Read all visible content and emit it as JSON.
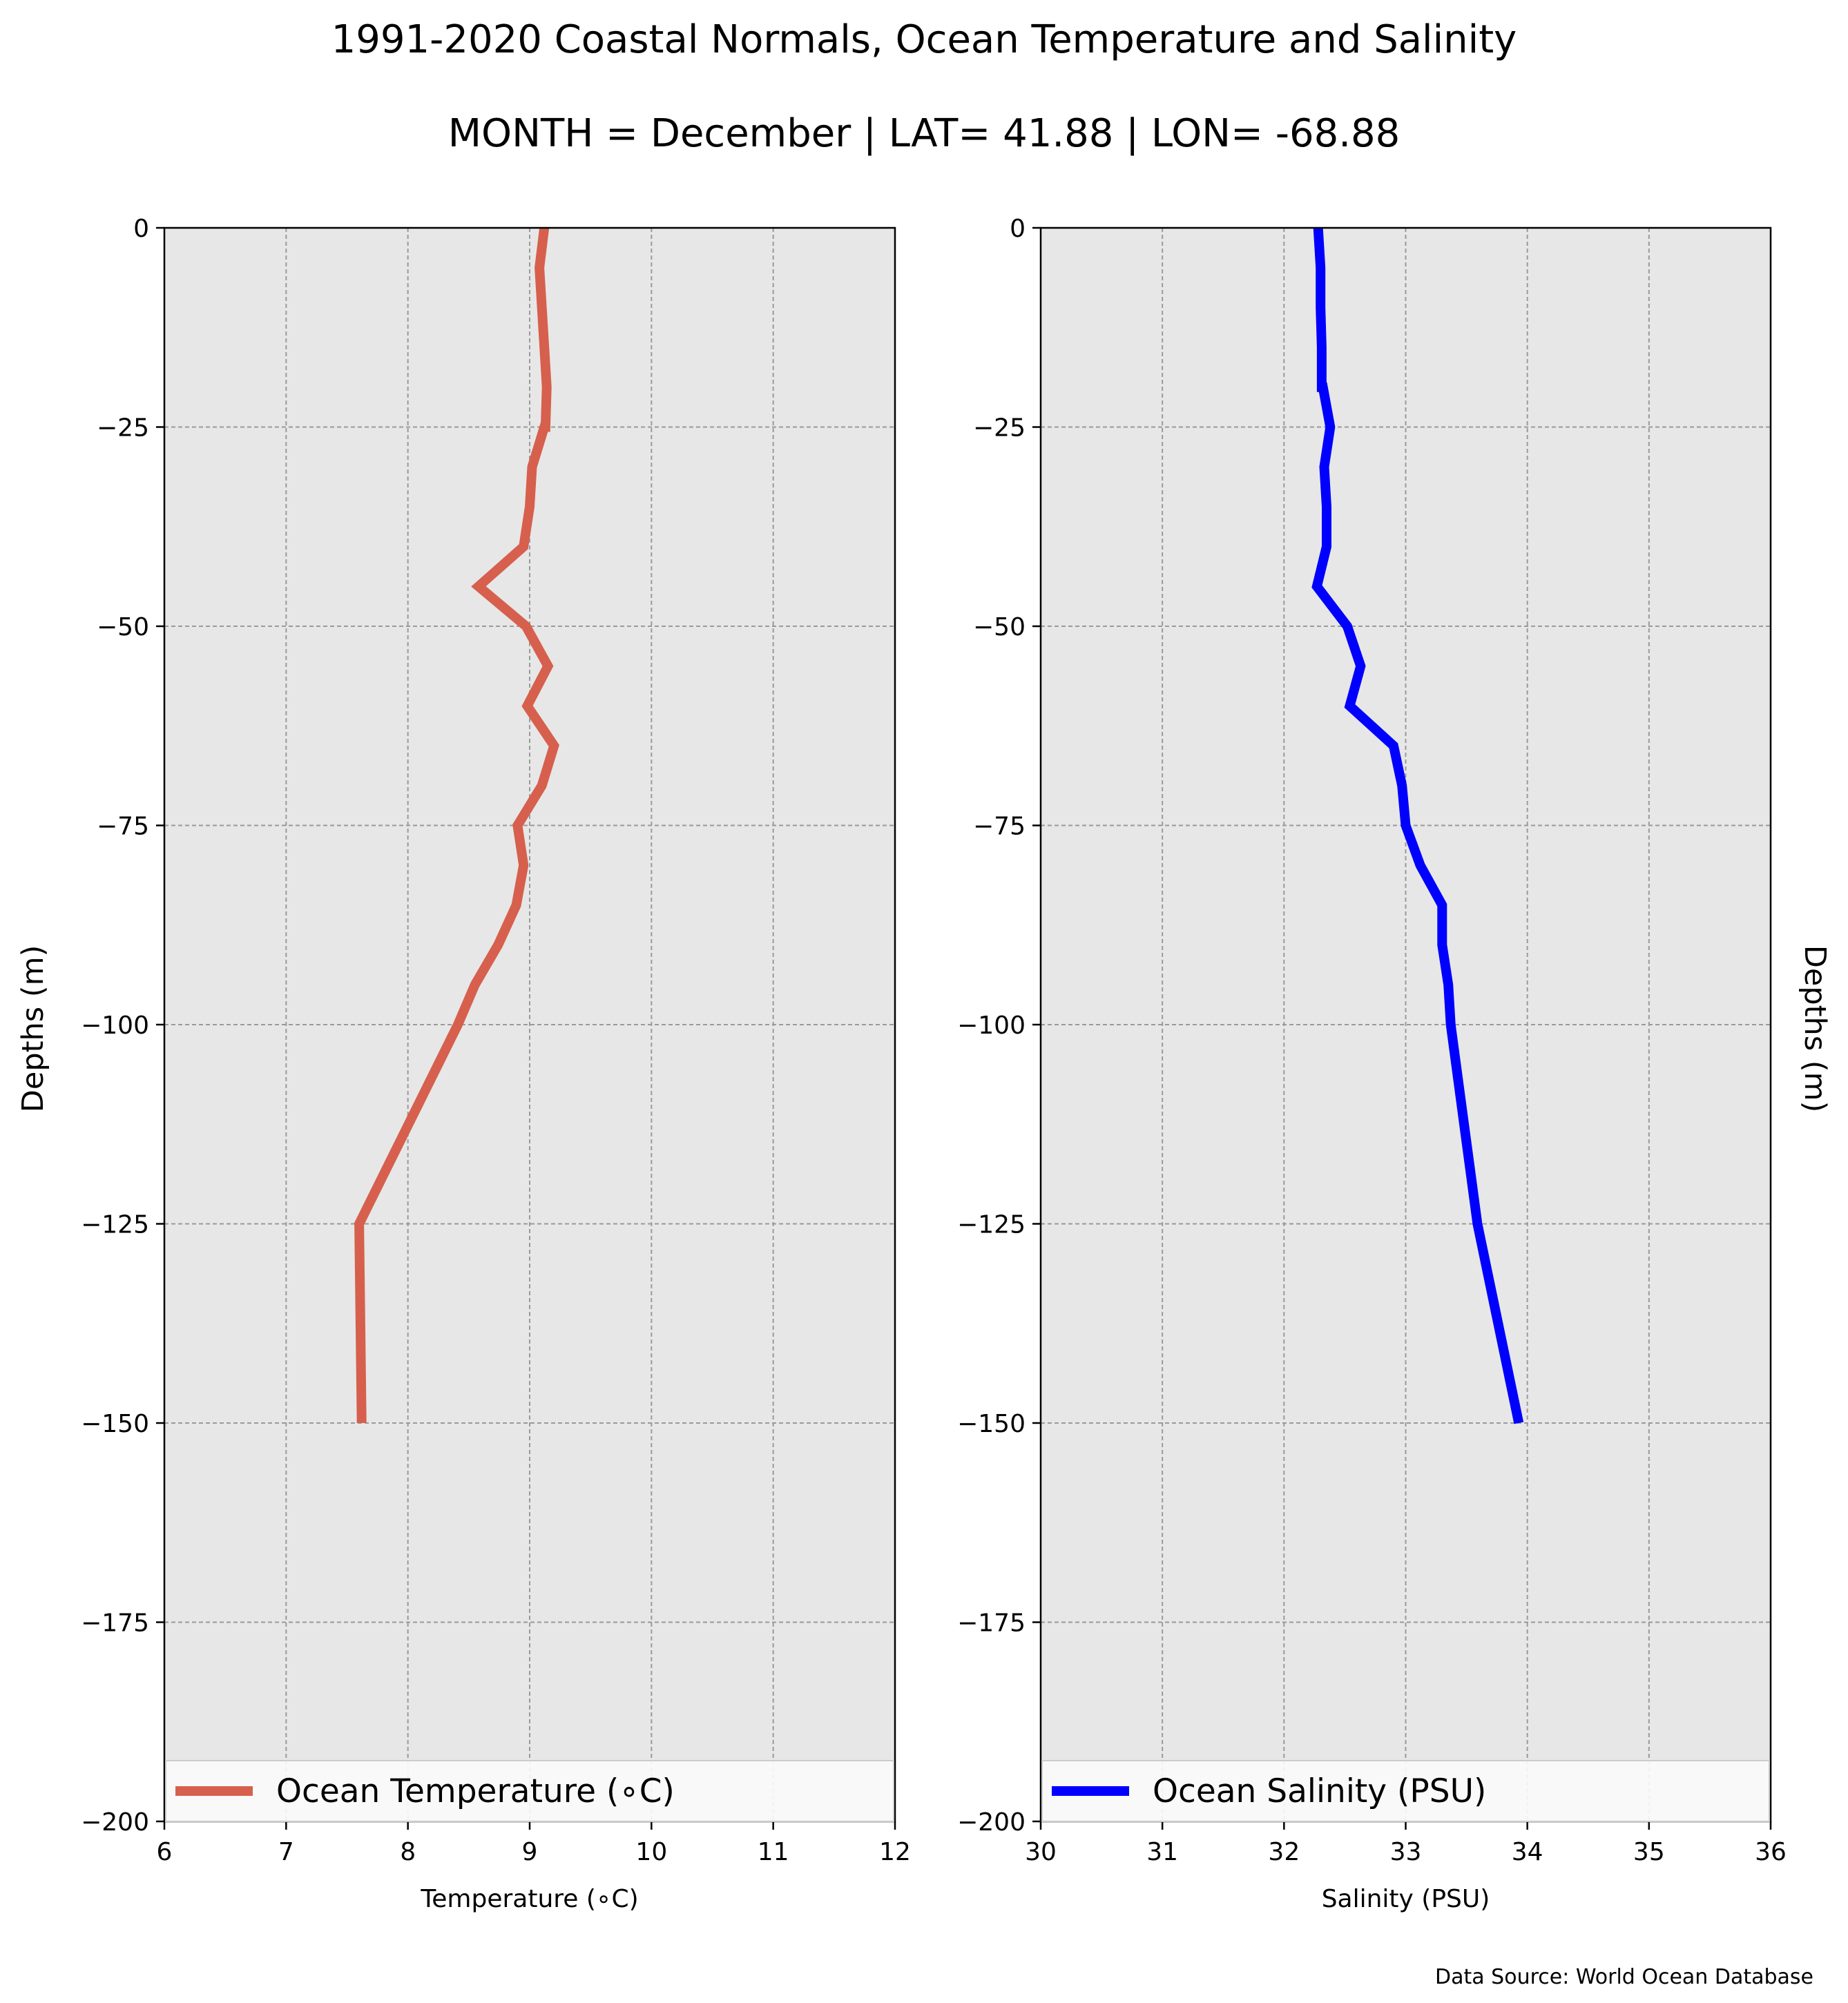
{
  "figure": {
    "title": "1991-2020 Coastal Normals, Ocean Temperature and Salinity",
    "subtitle": "MONTH = December | LAT= 41.88 | LON= -68.88",
    "source": "Data Source: World Ocean Database"
  },
  "colors": {
    "panel_bg": "#e7e7e7",
    "grid": "#9a9a9a",
    "temperature": "#d6604d",
    "salinity": "#0000ff"
  },
  "chart_data": [
    {
      "type": "line",
      "panel": "left",
      "xlabel": "Temperature (∘C)",
      "ylabel": "Depths (m)",
      "xlim": [
        6,
        12
      ],
      "ylim": [
        -200,
        0
      ],
      "xticks": [
        6,
        7,
        8,
        9,
        10,
        11,
        12
      ],
      "yticks": [
        0,
        -25,
        -50,
        -75,
        -100,
        -125,
        -150,
        -175,
        -200
      ],
      "ytick_labels": [
        "0",
        "−25",
        "−50",
        "−75",
        "−100",
        "−125",
        "−150",
        "−175",
        "−200"
      ],
      "grid": true,
      "legend": {
        "placement": "bottom",
        "entries": [
          "Ocean Temperature (∘C)"
        ]
      },
      "series": [
        {
          "name": "Ocean Temperature (∘C)",
          "x": [
            9.12,
            9.08,
            9.12,
            9.14,
            9.13,
            9.12,
            9.02,
            9.0,
            8.95,
            8.58,
            8.97,
            9.15,
            8.98,
            9.2,
            9.1,
            8.9,
            8.95,
            8.89,
            8.74,
            8.55,
            8.41,
            7.6,
            7.62
          ],
          "y": [
            0,
            -5,
            -15,
            -20,
            -25,
            -25,
            -30,
            -35,
            -40,
            -45,
            -50,
            -55,
            -60,
            -65,
            -70,
            -75,
            -80,
            -85,
            -90,
            -95,
            -100,
            -125,
            -150
          ]
        }
      ]
    },
    {
      "type": "line",
      "panel": "right",
      "xlabel": "Salinity (PSU)",
      "ylabel": "Depths (m)",
      "xlim": [
        30,
        36
      ],
      "ylim": [
        -200,
        0
      ],
      "xticks": [
        30,
        31,
        32,
        33,
        34,
        35,
        36
      ],
      "yticks": [
        0,
        -25,
        -50,
        -75,
        -100,
        -125,
        -150,
        -175,
        -200
      ],
      "ytick_labels": [
        "0",
        "−25",
        "−50",
        "−75",
        "−100",
        "−125",
        "−150",
        "−175",
        "−200"
      ],
      "grid": true,
      "legend": {
        "placement": "bottom",
        "entries": [
          "Ocean Salinity (PSU)"
        ]
      },
      "series": [
        {
          "name": "Ocean Salinity (PSU)",
          "x": [
            32.28,
            32.3,
            32.3,
            32.31,
            32.31,
            32.32,
            32.38,
            32.33,
            32.35,
            32.35,
            32.27,
            32.52,
            32.63,
            32.54,
            32.9,
            32.97,
            33.0,
            33.12,
            33.3,
            33.3,
            33.35,
            33.37,
            33.59,
            33.93
          ],
          "y": [
            0,
            -5,
            -10,
            -15,
            -20,
            -20,
            -25,
            -30,
            -35,
            -40,
            -45,
            -50,
            -55,
            -60,
            -65,
            -70,
            -75,
            -80,
            -85,
            -90,
            -95,
            -100,
            -125,
            -150
          ]
        }
      ]
    }
  ]
}
